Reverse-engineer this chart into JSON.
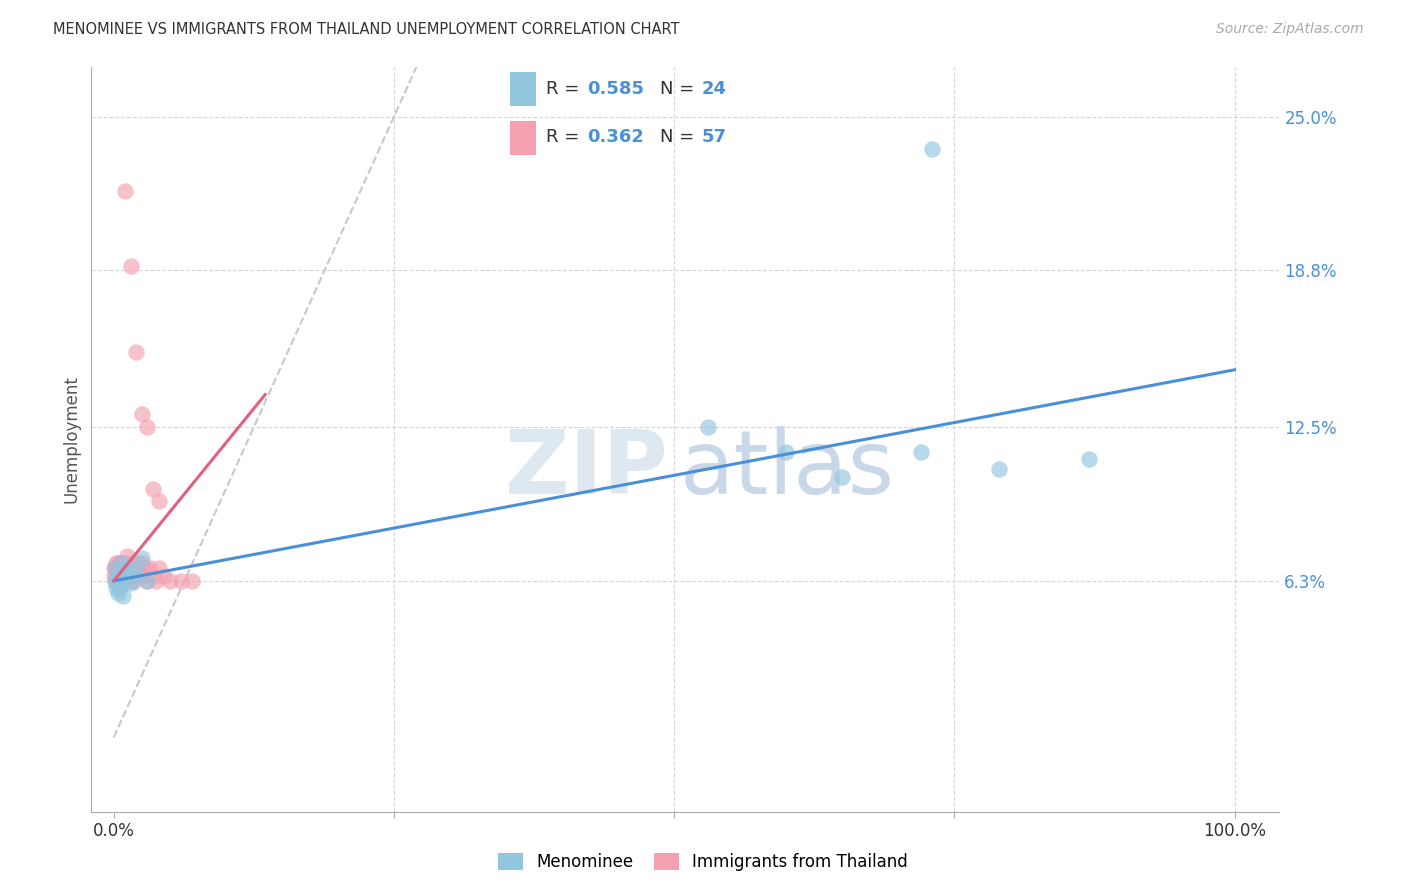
{
  "title": "MENOMINEE VS IMMIGRANTS FROM THAILAND UNEMPLOYMENT CORRELATION CHART",
  "source": "Source: ZipAtlas.com",
  "ylabel": "Unemployment",
  "yticks": [
    0.063,
    0.125,
    0.188,
    0.25
  ],
  "ytick_labels": [
    "6.3%",
    "12.5%",
    "18.8%",
    "25.0%"
  ],
  "xlim": [
    -0.02,
    1.04
  ],
  "ylim": [
    -0.03,
    0.27
  ],
  "color_blue": "#92C5DE",
  "color_pink": "#F4A0B0",
  "line_blue": "#4A90D9",
  "line_pink": "#E06080",
  "ref_line_color": "#C8C8C8",
  "grid_color": "#CCCCCC",
  "bg_color": "#FFFFFF",
  "blue_x": [
    0.001,
    0.001,
    0.002,
    0.003,
    0.004,
    0.005,
    0.006,
    0.007,
    0.008,
    0.009,
    0.01,
    0.012,
    0.015,
    0.018,
    0.02,
    0.025,
    0.03,
    0.53,
    0.6,
    0.65,
    0.72,
    0.79,
    0.87,
    0.73
  ],
  "blue_y": [
    0.068,
    0.063,
    0.06,
    0.064,
    0.058,
    0.06,
    0.066,
    0.07,
    0.057,
    0.062,
    0.065,
    0.068,
    0.062,
    0.065,
    0.068,
    0.072,
    0.063,
    0.125,
    0.115,
    0.105,
    0.115,
    0.108,
    0.112,
    0.237
  ],
  "pink_x": [
    0.0,
    0.0,
    0.001,
    0.001,
    0.002,
    0.002,
    0.003,
    0.003,
    0.004,
    0.004,
    0.005,
    0.005,
    0.005,
    0.006,
    0.006,
    0.007,
    0.007,
    0.008,
    0.008,
    0.009,
    0.009,
    0.01,
    0.01,
    0.011,
    0.012,
    0.012,
    0.013,
    0.014,
    0.015,
    0.015,
    0.016,
    0.017,
    0.018,
    0.019,
    0.02,
    0.022,
    0.023,
    0.024,
    0.025,
    0.026,
    0.028,
    0.03,
    0.032,
    0.035,
    0.038,
    0.04,
    0.045,
    0.05,
    0.06,
    0.07,
    0.01,
    0.015,
    0.02,
    0.025,
    0.03,
    0.035,
    0.04
  ],
  "pink_y": [
    0.065,
    0.068,
    0.063,
    0.068,
    0.065,
    0.07,
    0.063,
    0.068,
    0.065,
    0.07,
    0.063,
    0.065,
    0.07,
    0.065,
    0.07,
    0.063,
    0.068,
    0.065,
    0.07,
    0.063,
    0.068,
    0.065,
    0.07,
    0.065,
    0.068,
    0.073,
    0.065,
    0.068,
    0.063,
    0.07,
    0.065,
    0.068,
    0.063,
    0.07,
    0.065,
    0.07,
    0.068,
    0.065,
    0.07,
    0.065,
    0.068,
    0.063,
    0.068,
    0.065,
    0.063,
    0.068,
    0.065,
    0.063,
    0.063,
    0.063,
    0.22,
    0.19,
    0.155,
    0.13,
    0.125,
    0.1,
    0.095
  ],
  "blue_line_x": [
    0.0,
    1.0
  ],
  "blue_line_y": [
    0.063,
    0.148
  ],
  "pink_line_x": [
    0.0,
    0.135
  ],
  "pink_line_y": [
    0.063,
    0.138
  ],
  "ref_line_x": [
    0.0,
    0.27
  ],
  "ref_line_y": [
    0.0,
    0.27
  ]
}
